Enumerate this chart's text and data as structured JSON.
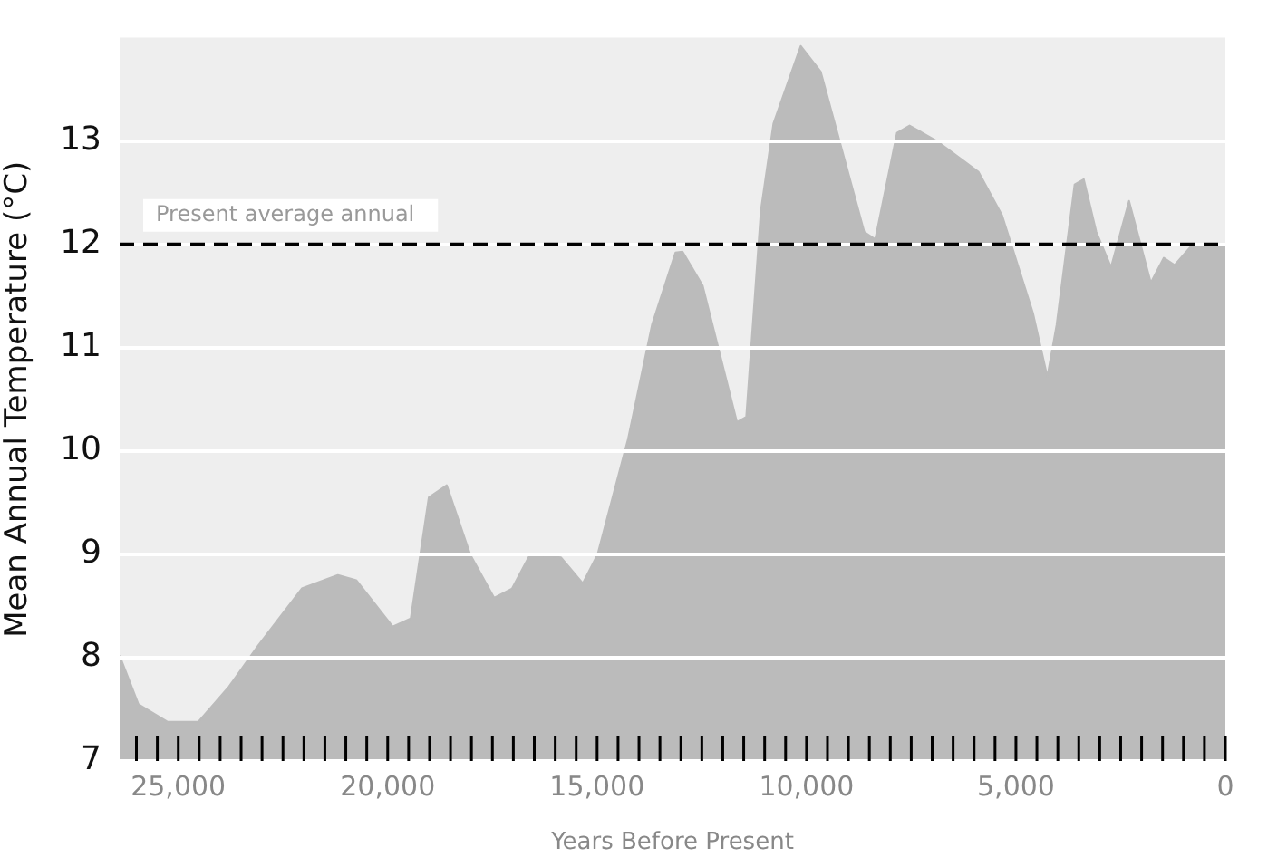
{
  "chart_data": {
    "type": "area",
    "xlabel": "Years Before Present",
    "ylabel": "Mean Annual Temperature (°C)",
    "x": [
      26400,
      25950,
      25260,
      24520,
      23790,
      23090,
      22050,
      21190,
      20750,
      19880,
      19450,
      19020,
      18590,
      18030,
      17460,
      17030,
      16600,
      15860,
      15340,
      14990,
      14260,
      13690,
      13130,
      12960,
      12480,
      11660,
      11440,
      11090,
      10790,
      10140,
      9660,
      8620,
      8360,
      7840,
      7540,
      6890,
      5890,
      5330,
      4590,
      4250,
      4030,
      3600,
      3380,
      3080,
      2730,
      2300,
      1780,
      1470,
      1210,
      780,
      0
    ],
    "series": [
      {
        "color": "#bbbbbb",
        "values": [
          8.02,
          7.55,
          7.38,
          7.38,
          7.72,
          8.12,
          8.67,
          8.8,
          8.75,
          8.3,
          8.38,
          9.55,
          9.67,
          9.0,
          8.58,
          8.67,
          9.0,
          8.97,
          8.72,
          9.0,
          10.12,
          11.22,
          11.92,
          11.93,
          11.6,
          10.28,
          10.33,
          12.33,
          13.17,
          13.92,
          13.67,
          12.12,
          12.05,
          13.08,
          13.15,
          13.0,
          12.7,
          12.28,
          11.33,
          10.72,
          11.22,
          12.58,
          12.63,
          12.12,
          11.78,
          12.42,
          11.63,
          11.87,
          11.8,
          12.0,
          12.0
        ]
      }
    ],
    "xlim": [
      26400,
      0
    ],
    "ylim": [
      7,
      14
    ],
    "xticks": [
      {
        "value": 25000,
        "label": "25,000"
      },
      {
        "value": 20000,
        "label": "20,000"
      },
      {
        "value": 15000,
        "label": "15,000"
      },
      {
        "value": 10000,
        "label": "10,000"
      },
      {
        "value": 5000,
        "label": "5,000"
      },
      0,
      {
        "value": 26000,
        "label": null
      },
      {
        "value": 25500,
        "label": null
      },
      {
        "value": 24500,
        "label": null
      },
      {
        "value": 24000,
        "label": null
      },
      {
        "value": 23500,
        "label": null
      },
      {
        "value": 23000,
        "label": null
      },
      {
        "value": 22500,
        "label": null
      },
      {
        "value": 22000,
        "label": null
      },
      {
        "value": 21500,
        "label": null
      },
      {
        "value": 21000,
        "label": null
      },
      {
        "value": 20500,
        "label": null
      },
      {
        "value": 19500,
        "label": null
      },
      {
        "value": 19000,
        "label": null
      },
      {
        "value": 18500,
        "label": null
      },
      {
        "value": 18000,
        "label": null
      },
      {
        "value": 17500,
        "label": null
      },
      {
        "value": 17000,
        "label": null
      },
      {
        "value": 16500,
        "label": null
      },
      {
        "value": 16000,
        "label": null
      },
      {
        "value": 15500,
        "label": null
      },
      {
        "value": 14500,
        "label": null
      },
      {
        "value": 14000,
        "label": null
      },
      {
        "value": 13500,
        "label": null
      },
      {
        "value": 13000,
        "label": null
      },
      {
        "value": 12500,
        "label": null
      },
      {
        "value": 12000,
        "label": null
      },
      {
        "value": 11500,
        "label": null
      },
      {
        "value": 11000,
        "label": null
      },
      {
        "value": 10500,
        "label": null
      },
      {
        "value": 9500,
        "label": null
      },
      {
        "value": 9000,
        "label": null
      },
      {
        "value": 8500,
        "label": null
      },
      {
        "value": 8000,
        "label": null
      },
      {
        "value": 7500,
        "label": null
      },
      {
        "value": 7000,
        "label": null
      },
      {
        "value": 6500,
        "label": null
      },
      {
        "value": 6000,
        "label": null
      },
      {
        "value": 5500,
        "label": null
      },
      {
        "value": 4500,
        "label": null
      },
      {
        "value": 4000,
        "label": null
      },
      {
        "value": 3500,
        "label": null
      },
      {
        "value": 3000,
        "label": null
      },
      {
        "value": 2500,
        "label": null
      },
      {
        "value": 2000,
        "label": null
      },
      {
        "value": 1500,
        "label": null
      },
      {
        "value": 1000,
        "label": null
      },
      {
        "value": 500,
        "label": null
      }
    ],
    "yticks": [
      7,
      8,
      9,
      10,
      11,
      12,
      13
    ],
    "grid": "y",
    "legend": false,
    "ref_lines": [
      {
        "axis": "y",
        "value": 12,
        "label": "Present average annual",
        "color": "#000000",
        "line_style": "dashed"
      }
    ]
  }
}
